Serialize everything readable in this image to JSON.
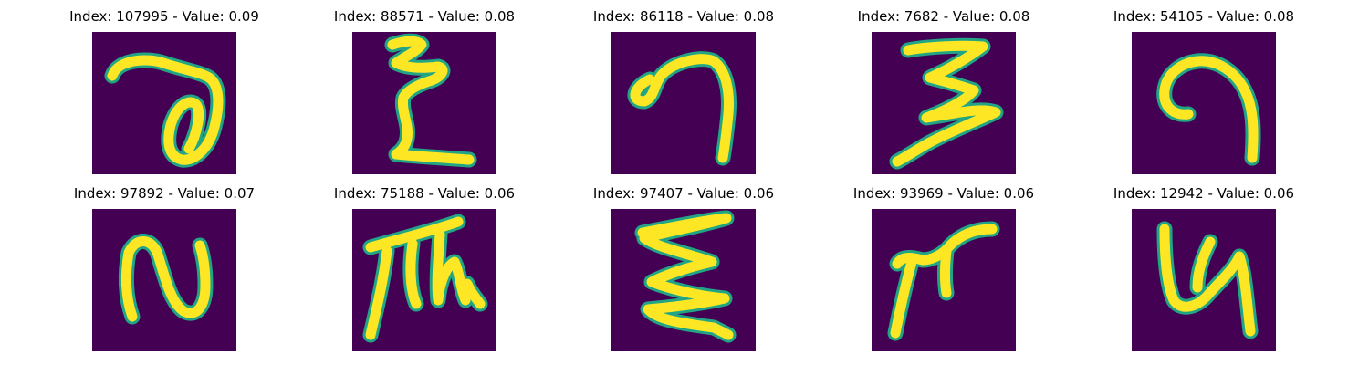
{
  "figure": {
    "colors": {
      "background": "#440154",
      "stroke_core": "#fde725",
      "stroke_edge": "#21a585"
    },
    "panels": [
      {
        "title": "Index: 107995 - Value: 0.09",
        "index": 107995,
        "value": 0.09,
        "glyph": "handwritten-a-like"
      },
      {
        "title": "Index: 88571 - Value: 0.08",
        "index": 88571,
        "value": 0.08,
        "glyph": "handwritten-epsilon-like"
      },
      {
        "title": "Index: 86118 - Value: 0.08",
        "index": 86118,
        "value": 0.08,
        "glyph": "handwritten-hook"
      },
      {
        "title": "Index: 7682 - Value: 0.08",
        "index": 7682,
        "value": 0.08,
        "glyph": "handwritten-3-like"
      },
      {
        "title": "Index: 54105 - Value: 0.08",
        "index": 54105,
        "value": 0.08,
        "glyph": "handwritten-spiral"
      },
      {
        "title": "Index: 97892 - Value: 0.07",
        "index": 97892,
        "value": 0.07,
        "glyph": "handwritten-N"
      },
      {
        "title": "Index: 75188 - Value: 0.06",
        "index": 75188,
        "value": 0.06,
        "glyph": "handwritten-glyph"
      },
      {
        "title": "Index: 97407 - Value: 0.06",
        "index": 97407,
        "value": 0.06,
        "glyph": "handwritten-zigzag"
      },
      {
        "title": "Index: 93969 - Value: 0.06",
        "index": 93969,
        "value": 0.06,
        "glyph": "handwritten-branch"
      },
      {
        "title": "Index: 12942 - Value: 0.06",
        "index": 12942,
        "value": 0.06,
        "glyph": "handwritten-U-hook"
      }
    ]
  }
}
